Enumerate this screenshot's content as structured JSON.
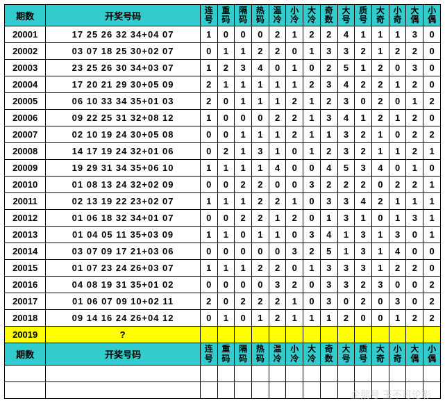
{
  "headers": {
    "period": "期数",
    "numbers": "开奖号码",
    "cols": [
      "连号",
      "重码",
      "隔码",
      "热码",
      "温冷",
      "小冷",
      "大冷",
      "奇数",
      "大号",
      "质号",
      "大奇",
      "小奇",
      "大偶",
      "小偶"
    ]
  },
  "rows": [
    {
      "p": "20001",
      "n": "17 25 26 32 34+04 07",
      "v": [
        1,
        0,
        0,
        0,
        2,
        1,
        2,
        2,
        4,
        1,
        1,
        1,
        3,
        0
      ]
    },
    {
      "p": "20002",
      "n": "03 07 18 25 30+02 07",
      "v": [
        0,
        1,
        1,
        2,
        2,
        0,
        1,
        3,
        3,
        2,
        1,
        2,
        2,
        0
      ]
    },
    {
      "p": "20003",
      "n": "23 25 26 30 34+03 07",
      "v": [
        1,
        2,
        3,
        4,
        0,
        1,
        0,
        2,
        5,
        1,
        2,
        0,
        3,
        0
      ]
    },
    {
      "p": "20004",
      "n": "17 20 21 29 30+05 09",
      "v": [
        2,
        1,
        1,
        1,
        1,
        1,
        2,
        3,
        4,
        2,
        2,
        1,
        2,
        0
      ]
    },
    {
      "p": "20005",
      "n": "06 10 33 34 35+01 03",
      "v": [
        2,
        0,
        1,
        1,
        1,
        2,
        1,
        2,
        3,
        0,
        2,
        0,
        1,
        2
      ]
    },
    {
      "p": "20006",
      "n": "09 22 25 31 32+08 12",
      "v": [
        1,
        0,
        0,
        0,
        2,
        2,
        1,
        3,
        4,
        1,
        2,
        1,
        2,
        0
      ]
    },
    {
      "p": "20007",
      "n": "02 10 19 24 30+05 08",
      "v": [
        0,
        0,
        1,
        1,
        1,
        2,
        1,
        1,
        3,
        2,
        1,
        0,
        2,
        2
      ]
    },
    {
      "p": "20008",
      "n": "14 17 19 24 32+01 06",
      "v": [
        0,
        2,
        1,
        3,
        1,
        0,
        1,
        2,
        3,
        2,
        1,
        1,
        2,
        1
      ]
    },
    {
      "p": "20009",
      "n": "19 29 31 34 35+06 10",
      "v": [
        1,
        1,
        1,
        1,
        4,
        0,
        0,
        4,
        5,
        3,
        4,
        0,
        1,
        0
      ]
    },
    {
      "p": "20010",
      "n": "01 08 13 24 32+02 09",
      "v": [
        0,
        0,
        2,
        2,
        0,
        0,
        3,
        2,
        2,
        2,
        0,
        2,
        2,
        1
      ]
    },
    {
      "p": "20011",
      "n": "02 13 19 22 23+02 07",
      "v": [
        1,
        1,
        1,
        2,
        2,
        1,
        0,
        3,
        3,
        4,
        2,
        1,
        1,
        1
      ]
    },
    {
      "p": "20012",
      "n": "01 06 18 32 34+01 07",
      "v": [
        0,
        0,
        2,
        2,
        1,
        2,
        0,
        1,
        3,
        1,
        0,
        1,
        3,
        1
      ]
    },
    {
      "p": "20013",
      "n": "01 04 05 11 35+03 09",
      "v": [
        1,
        1,
        0,
        1,
        1,
        0,
        3,
        4,
        1,
        3,
        1,
        3,
        0,
        1
      ]
    },
    {
      "p": "20014",
      "n": "03 07 09 17 21+03 06",
      "v": [
        0,
        0,
        0,
        0,
        0,
        3,
        2,
        5,
        1,
        3,
        1,
        4,
        0,
        0
      ]
    },
    {
      "p": "20015",
      "n": "01 07 23 24 26+03 07",
      "v": [
        1,
        1,
        1,
        2,
        2,
        0,
        1,
        3,
        3,
        3,
        1,
        2,
        2,
        0
      ]
    },
    {
      "p": "20016",
      "n": "04 08 19 31 35+01 02",
      "v": [
        0,
        0,
        0,
        0,
        3,
        2,
        0,
        3,
        3,
        2,
        3,
        0,
        0,
        2
      ]
    },
    {
      "p": "20017",
      "n": "01 06 07 09 10+02 11",
      "v": [
        2,
        0,
        2,
        2,
        2,
        1,
        0,
        3,
        0,
        2,
        0,
        3,
        0,
        2
      ]
    },
    {
      "p": "20018",
      "n": "09 14 16 24 26+04 12",
      "v": [
        0,
        1,
        0,
        1,
        2,
        1,
        1,
        1,
        2,
        0,
        0,
        1,
        2,
        2
      ]
    }
  ],
  "highlight": {
    "p": "20019",
    "n": "?"
  },
  "watermark": "企鹅号 玉不可论彩"
}
